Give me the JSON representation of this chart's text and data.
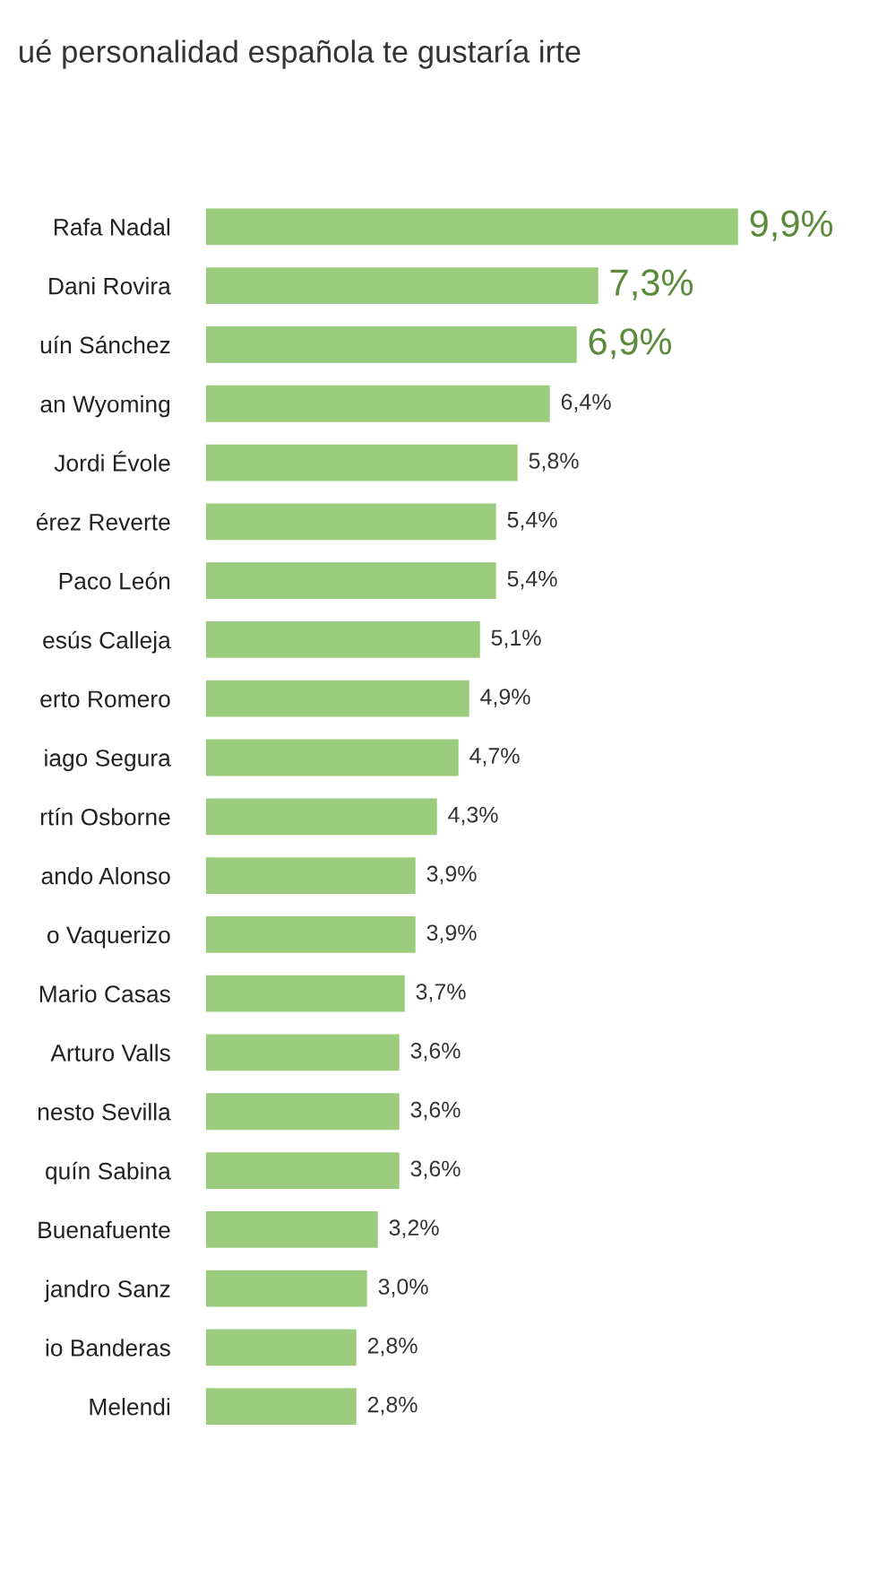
{
  "chart_data": {
    "type": "bar",
    "orientation": "horizontal",
    "title": "ué personalidad española te gustaría irte",
    "categories": [
      "Rafa Nadal",
      "Dani Rovira",
      "uín Sánchez",
      "an Wyoming",
      "Jordi Évole",
      "érez Reverte",
      "Paco León",
      "esús Calleja",
      "erto Romero",
      "iago Segura",
      "rtín Osborne",
      "ando Alonso",
      "o Vaquerizo",
      "Mario Casas",
      "Arturo Valls",
      "nesto Sevilla",
      "quín Sabina",
      "Buenafuente",
      "jandro Sanz",
      "io Banderas",
      "Melendi"
    ],
    "values": [
      9.9,
      7.3,
      6.9,
      6.4,
      5.8,
      5.4,
      5.4,
      5.1,
      4.9,
      4.7,
      4.3,
      3.9,
      3.9,
      3.7,
      3.6,
      3.6,
      3.6,
      3.2,
      3.0,
      2.8,
      2.8
    ],
    "value_labels": [
      "9,9%",
      "7,3%",
      "6,9%",
      "6,4%",
      "5,8%",
      "5,4%",
      "5,4%",
      "5,1%",
      "4,9%",
      "4,7%",
      "4,3%",
      "3,9%",
      "3,9%",
      "3,7%",
      "3,6%",
      "3,6%",
      "3,6%",
      "3,2%",
      "3,0%",
      "2,8%",
      "2,8%"
    ],
    "color": "#9bcb7d"
  }
}
